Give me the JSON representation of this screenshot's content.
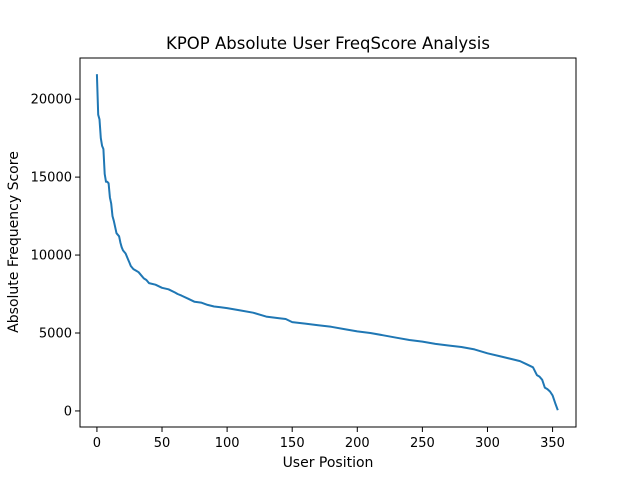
{
  "chart_data": {
    "type": "line",
    "title": "KPOP Absolute User FreqScore Analysis",
    "xlabel": "User Position",
    "ylabel": "Absolute Frequency Score",
    "xlim": [
      -13,
      368
    ],
    "ylim": [
      -1030,
      22640
    ],
    "xticks": [
      0,
      50,
      100,
      150,
      200,
      250,
      300,
      350
    ],
    "yticks": [
      0,
      5000,
      10000,
      15000,
      20000
    ],
    "grid": false,
    "legend": "none",
    "series": [
      {
        "color": "#1f77b4",
        "x": [
          0,
          1,
          2,
          3,
          4,
          5,
          6,
          7,
          8,
          9,
          10,
          11,
          12,
          13,
          15,
          17,
          18,
          19,
          20,
          22,
          24,
          25,
          26,
          28,
          30,
          32,
          34,
          36,
          38,
          40,
          45,
          50,
          55,
          60,
          62,
          65,
          70,
          75,
          80,
          85,
          90,
          95,
          100,
          110,
          120,
          130,
          140,
          145,
          150,
          160,
          170,
          180,
          190,
          200,
          210,
          220,
          230,
          240,
          250,
          260,
          270,
          280,
          290,
          300,
          310,
          320,
          325,
          330,
          335,
          338,
          340,
          342,
          344,
          346,
          348,
          350,
          352,
          354
        ],
        "values": [
          21600,
          19000,
          18700,
          17500,
          17000,
          16800,
          15200,
          14700,
          14700,
          14600,
          13700,
          13300,
          12500,
          12200,
          11400,
          11200,
          10800,
          10500,
          10300,
          10100,
          9700,
          9500,
          9300,
          9100,
          9000,
          8900,
          8700,
          8500,
          8400,
          8200,
          8100,
          7900,
          7800,
          7600,
          7500,
          7400,
          7200,
          7000,
          6950,
          6800,
          6700,
          6650,
          6600,
          6450,
          6300,
          6050,
          5950,
          5900,
          5700,
          5600,
          5500,
          5400,
          5250,
          5100,
          5000,
          4850,
          4700,
          4550,
          4450,
          4300,
          4200,
          4100,
          3950,
          3700,
          3500,
          3300,
          3200,
          3000,
          2800,
          2300,
          2200,
          2000,
          1500,
          1400,
          1250,
          1000,
          500,
          50
        ]
      }
    ]
  }
}
